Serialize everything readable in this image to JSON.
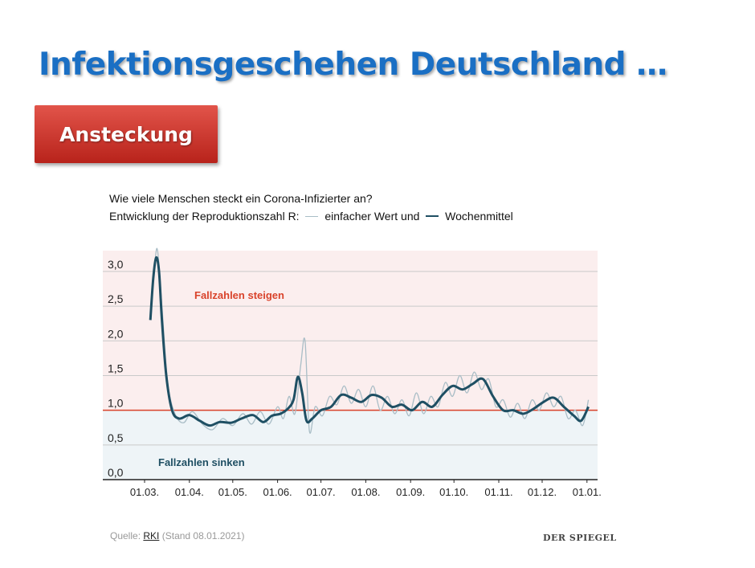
{
  "slide": {
    "title": "Infektionsgeschehen Deutschland …",
    "tag": "Ansteckung"
  },
  "chart_head": {
    "question": "Wie viele Menschen steckt ein Corona-Infizierter an?",
    "subtitle_prefix": "Entwicklung der Reproduktionszahl R:",
    "single_label": "einfacher Wert und",
    "weekly_label": "Wochenmittel"
  },
  "footer": {
    "source_prefix": "Quelle:",
    "source_link": "RKI",
    "source_suffix": "(Stand 08.01.2021)",
    "brand": "DER SPIEGEL"
  },
  "colors": {
    "weekly_line": "#1f4f63",
    "single_line": "#a9bdc6",
    "threshold": "#d9432b",
    "zone_rising": "#fbeeee",
    "zone_falling": "#eef4f7",
    "label_rising": "#d9432b",
    "label_falling": "#1f4f63"
  },
  "chart_data": {
    "type": "line",
    "ylim": [
      0,
      3.3
    ],
    "yticks": [
      "3,0",
      "2,5",
      "2,0",
      "1,5",
      "1,0",
      "0,5",
      "0,0"
    ],
    "ytick_values": [
      3.0,
      2.5,
      2.0,
      1.5,
      1.0,
      0.5,
      0.0
    ],
    "xticks": [
      "01.03.",
      "01.04.",
      "01.05.",
      "01.06.",
      "01.07.",
      "01.08.",
      "01.09.",
      "01.10.",
      "01.11.",
      "01.12.",
      "01.01."
    ],
    "threshold": 1.0,
    "annotations": {
      "rising": "Fallzahlen steigen",
      "falling": "Fallzahlen sinken"
    },
    "series": [
      {
        "name": "Wochenmittel",
        "x": [
          "2020-03-05",
          "2020-03-07",
          "2020-03-09",
          "2020-03-11",
          "2020-03-13",
          "2020-03-16",
          "2020-03-20",
          "2020-03-25",
          "2020-04-01",
          "2020-04-08",
          "2020-04-15",
          "2020-04-22",
          "2020-04-30",
          "2020-05-07",
          "2020-05-15",
          "2020-05-22",
          "2020-05-28",
          "2020-06-03",
          "2020-06-08",
          "2020-06-12",
          "2020-06-15",
          "2020-06-18",
          "2020-06-21",
          "2020-06-25",
          "2020-07-01",
          "2020-07-08",
          "2020-07-15",
          "2020-07-22",
          "2020-07-29",
          "2020-08-05",
          "2020-08-12",
          "2020-08-19",
          "2020-08-26",
          "2020-09-02",
          "2020-09-09",
          "2020-09-16",
          "2020-09-23",
          "2020-09-30",
          "2020-10-07",
          "2020-10-14",
          "2020-10-21",
          "2020-10-28",
          "2020-11-04",
          "2020-11-11",
          "2020-11-18",
          "2020-11-25",
          "2020-12-02",
          "2020-12-09",
          "2020-12-16",
          "2020-12-23",
          "2020-12-28",
          "2021-01-02"
        ],
        "y": [
          2.3,
          2.9,
          3.2,
          3.0,
          2.3,
          1.5,
          1.0,
          0.88,
          0.93,
          0.85,
          0.78,
          0.83,
          0.82,
          0.88,
          0.93,
          0.83,
          0.92,
          0.95,
          1.02,
          1.15,
          1.48,
          1.25,
          0.85,
          0.88,
          1.0,
          1.05,
          1.22,
          1.18,
          1.12,
          1.22,
          1.18,
          1.05,
          1.08,
          1.0,
          1.12,
          1.05,
          1.22,
          1.35,
          1.3,
          1.38,
          1.45,
          1.2,
          1.0,
          1.0,
          0.95,
          1.02,
          1.12,
          1.18,
          1.05,
          0.92,
          0.85,
          1.05
        ]
      },
      {
        "name": "einfacher Wert",
        "x": [
          "2020-03-05",
          "2020-03-08",
          "2020-03-10",
          "2020-03-13",
          "2020-03-17",
          "2020-03-22",
          "2020-03-28",
          "2020-04-03",
          "2020-04-10",
          "2020-04-17",
          "2020-04-24",
          "2020-05-01",
          "2020-05-08",
          "2020-05-14",
          "2020-05-20",
          "2020-05-26",
          "2020-06-01",
          "2020-06-05",
          "2020-06-09",
          "2020-06-13",
          "2020-06-17",
          "2020-06-20",
          "2020-06-23",
          "2020-06-27",
          "2020-07-02",
          "2020-07-07",
          "2020-07-12",
          "2020-07-17",
          "2020-07-22",
          "2020-07-27",
          "2020-08-01",
          "2020-08-06",
          "2020-08-11",
          "2020-08-16",
          "2020-08-21",
          "2020-08-26",
          "2020-08-31",
          "2020-09-05",
          "2020-09-10",
          "2020-09-15",
          "2020-09-20",
          "2020-09-25",
          "2020-09-30",
          "2020-10-05",
          "2020-10-10",
          "2020-10-15",
          "2020-10-20",
          "2020-10-25",
          "2020-10-30",
          "2020-11-04",
          "2020-11-09",
          "2020-11-14",
          "2020-11-19",
          "2020-11-24",
          "2020-11-29",
          "2020-12-04",
          "2020-12-09",
          "2020-12-14",
          "2020-12-19",
          "2020-12-24",
          "2020-12-29",
          "2021-01-02"
        ],
        "y": [
          2.4,
          3.1,
          3.3,
          2.5,
          1.4,
          0.95,
          0.82,
          0.98,
          0.8,
          0.72,
          0.88,
          0.78,
          0.95,
          0.8,
          0.98,
          0.8,
          1.05,
          0.88,
          1.2,
          0.95,
          1.65,
          2.0,
          0.7,
          1.05,
          0.92,
          1.2,
          1.08,
          1.35,
          1.1,
          1.3,
          1.05,
          1.35,
          1.0,
          1.2,
          0.95,
          1.15,
          0.92,
          1.25,
          0.95,
          1.2,
          1.05,
          1.4,
          1.2,
          1.5,
          1.25,
          1.55,
          1.3,
          1.45,
          1.05,
          1.15,
          0.9,
          1.1,
          0.88,
          1.15,
          1.0,
          1.25,
          1.05,
          1.2,
          0.88,
          1.0,
          0.78,
          1.15
        ]
      }
    ]
  }
}
